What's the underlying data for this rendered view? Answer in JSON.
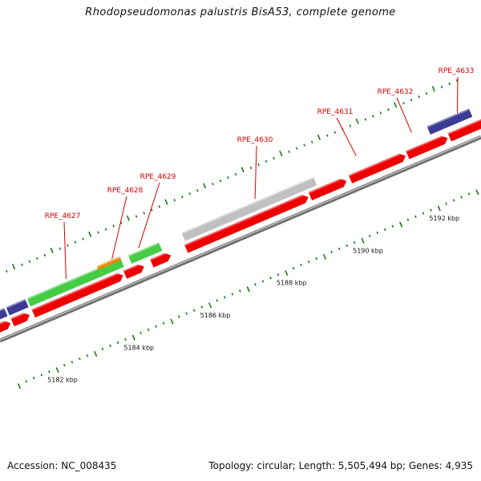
{
  "title": "Rhodopseudomonas palustris BisA53, complete genome",
  "footer": {
    "accession": "Accession: NC_008435",
    "summary": "Topology: circular; Length: 5,505,494 bp; Genes: 4,935"
  },
  "colors": {
    "backbone": "#8c8c8c",
    "cds": "#ee0000",
    "gene_green": "#44cc44",
    "gene_orange": "#ee8800",
    "gene_gray": "#c0c0c0",
    "gene_blue": "#3c3c96",
    "tick": "#1a7a1a",
    "label": "#d40000"
  },
  "map": {
    "start_kbp": 5181.0,
    "end_kbp": 5193.6,
    "tick_labels": [
      "5182 kbp",
      "5184 kbp",
      "5186 kbp",
      "5188 kbp",
      "5190 kbp",
      "5192 kbp"
    ],
    "gene_labels": [
      "RPE_4627",
      "RPE_4628",
      "RPE_4629",
      "RPE_4630",
      "RPE_4631",
      "RPE_4632",
      "RPE_4633"
    ]
  }
}
